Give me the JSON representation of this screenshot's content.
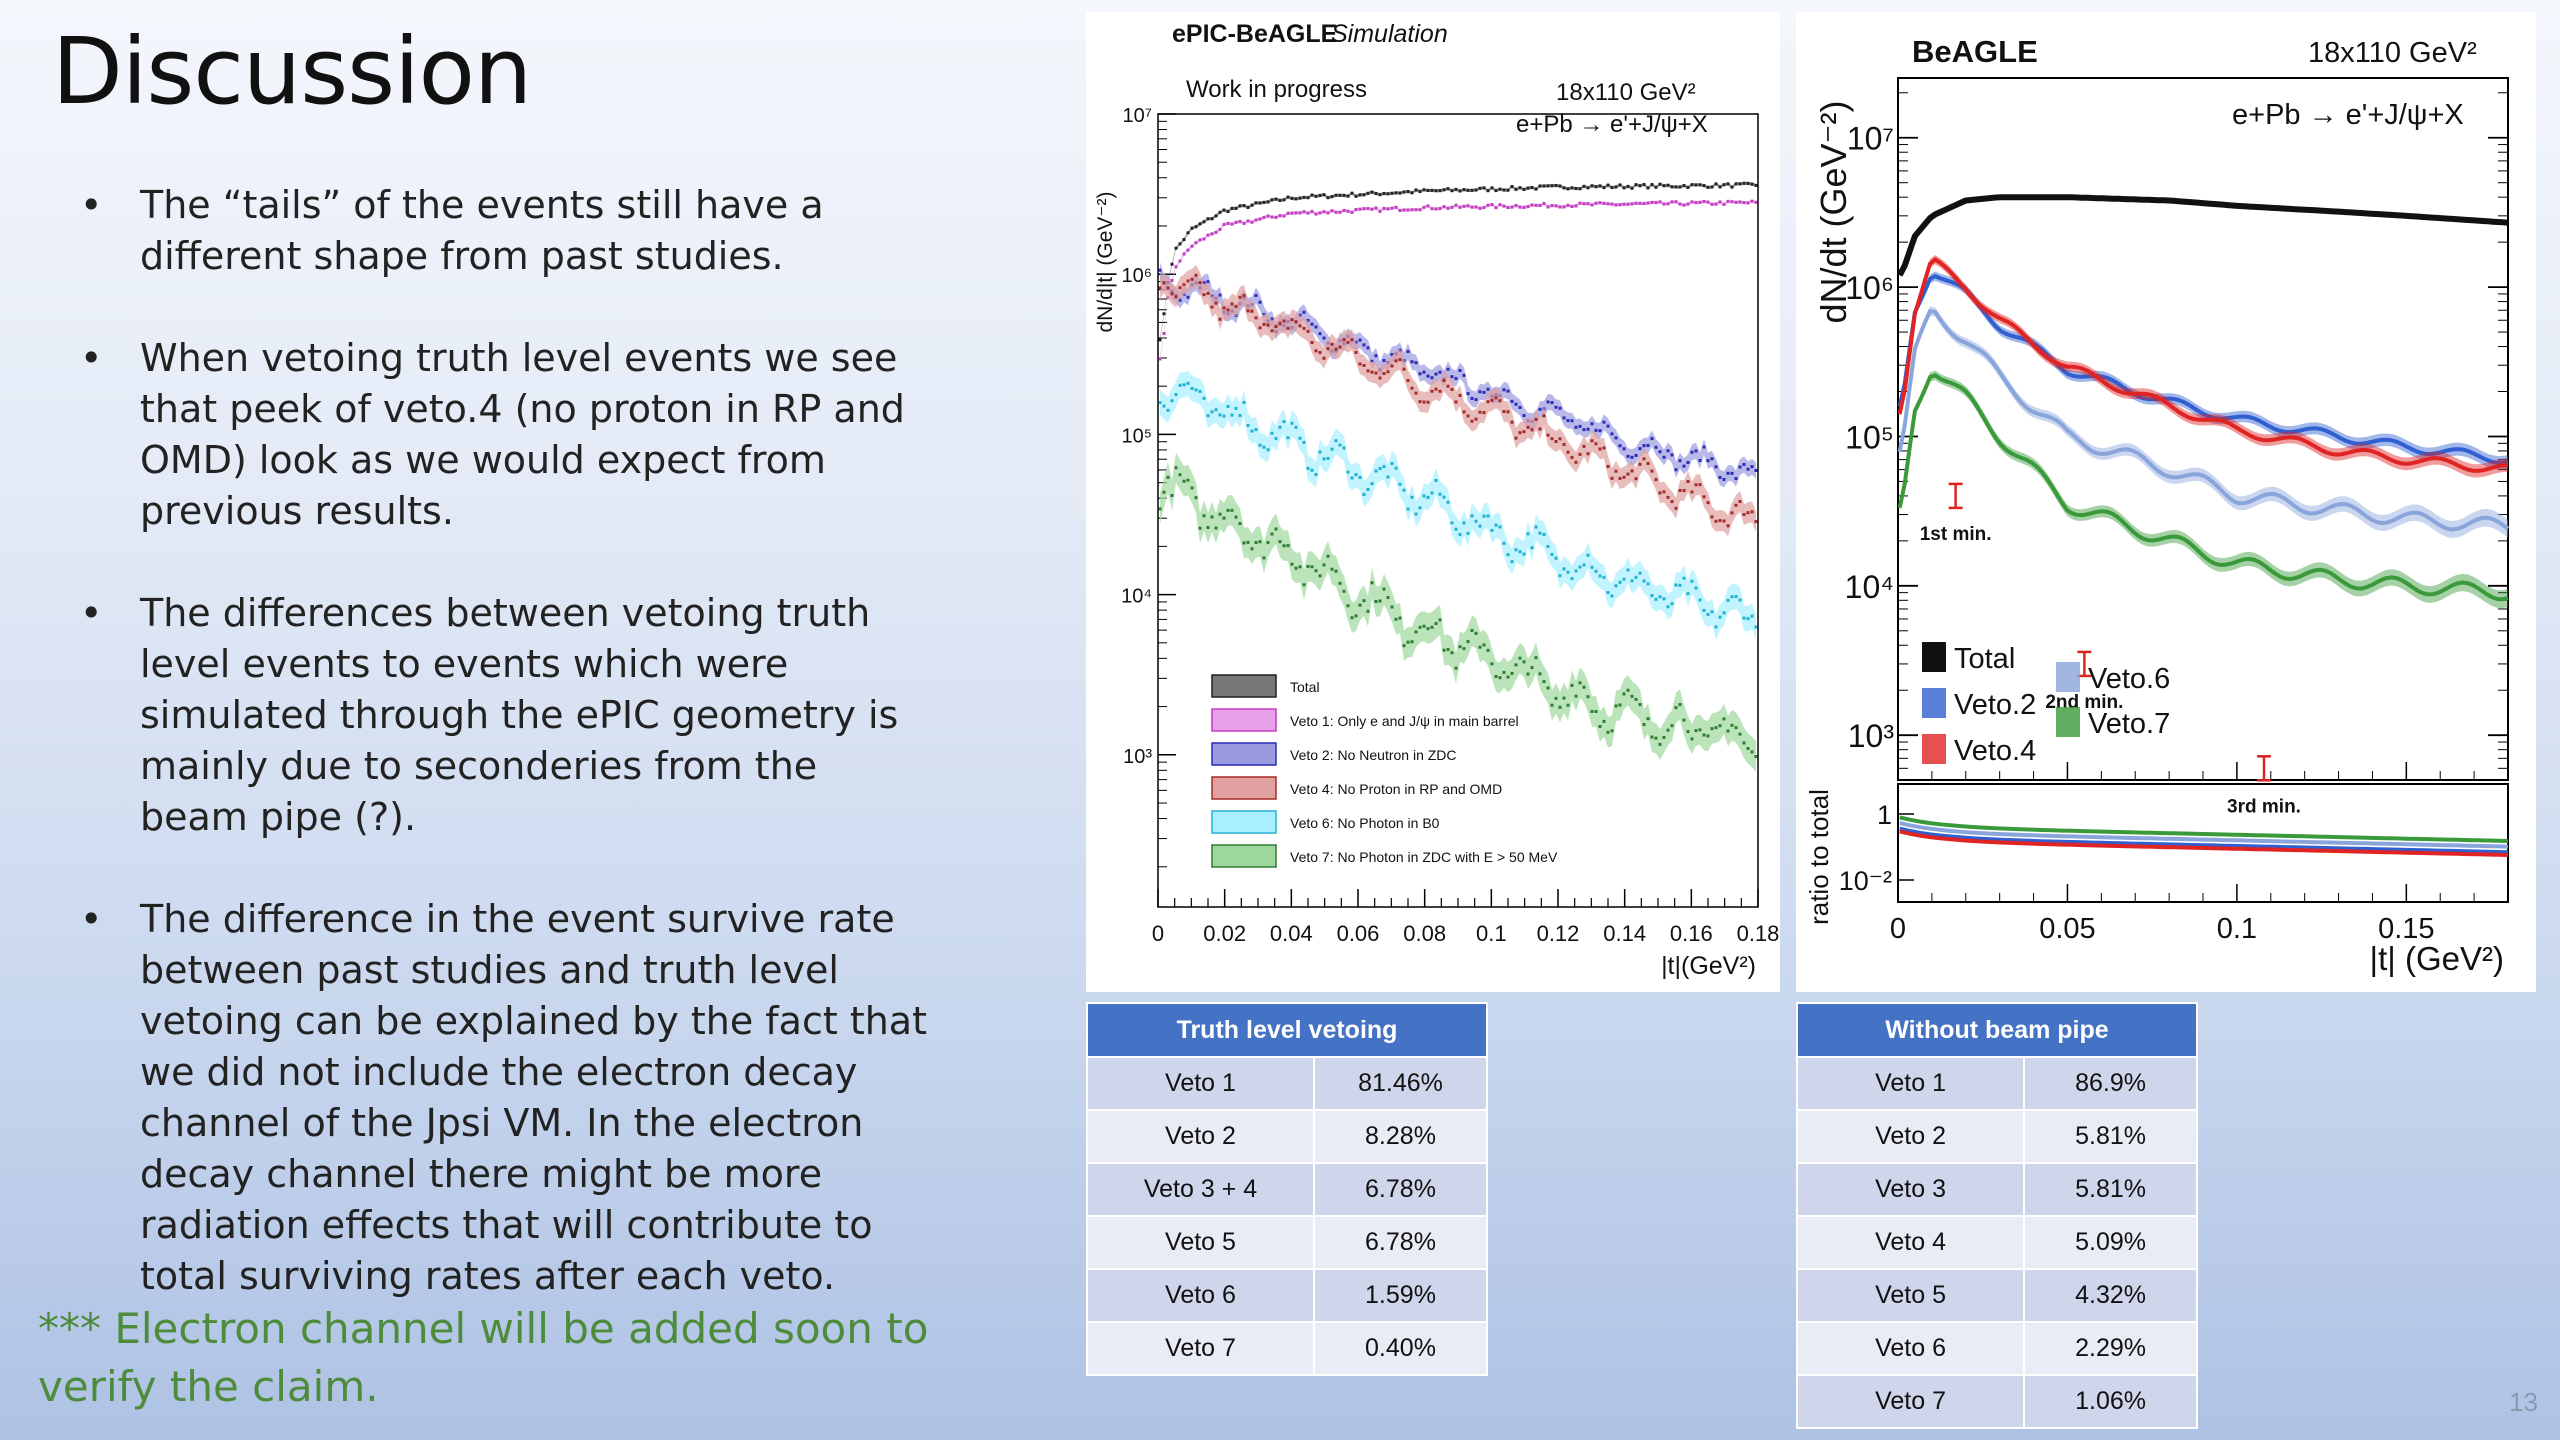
{
  "slide": {
    "title": "Discussion",
    "bullets": [
      "The “tails” of the events still have a different shape from past studies.",
      "When vetoing truth level events we see that peek of veto.4 (no proton in RP and OMD) look as we would expect from previous results.",
      "The differences between vetoing truth level events to events which were simulated through the ePIC geometry is mainly due to seconderies from the beam pipe (?).",
      "The difference in the event survive rate between past studies and truth level vetoing can be explained by the fact that we did not include the electron decay channel of the Jpsi VM. In the electron decay channel there might be more radiation effects that will contribute to total surviving rates after each veto."
    ],
    "note": "*** Electron channel will be added soon to verify the claim.",
    "page_number": "13"
  },
  "chart_data": [
    {
      "type": "scatter",
      "title": "ePIC-BeAGLE",
      "title_suffix": "Simulation",
      "subtitle": "Work in progress",
      "energy_label": "18x110 GeV²",
      "process_label": "e+Pb → e'+J/ψ+X",
      "xlabel": "|t|(GeV²)",
      "ylabel": "dN/d|t| (GeV⁻²)",
      "xlim": [
        0,
        0.18
      ],
      "ylim_log10": [
        2.05,
        7.0
      ],
      "yscale": "log",
      "x_ticks": [
        "0",
        "0.02",
        "0.04",
        "0.06",
        "0.08",
        "0.1",
        "0.12",
        "0.14",
        "0.16",
        "0.18"
      ],
      "y_ticks": [
        "10⁷",
        "10⁶",
        "10⁵",
        "10⁴",
        "10³"
      ],
      "legend_position": "bottom-left",
      "series": [
        {
          "name": "Total",
          "color": "#222222",
          "band": "#777777",
          "x": [
            0.001,
            0.003,
            0.005,
            0.01,
            0.02,
            0.04,
            0.08,
            0.12,
            0.18
          ],
          "y": [
            400000,
            900000,
            1400000,
            1900000,
            2500000,
            3000000,
            3300000,
            3500000,
            3600000
          ]
        },
        {
          "name": "Veto 1: Only e and J/ψ in main barrel",
          "color": "#c23cc2",
          "band": "#e8a0e8",
          "x": [
            0.001,
            0.003,
            0.005,
            0.01,
            0.02,
            0.04,
            0.08,
            0.12,
            0.18
          ],
          "y": [
            300000,
            700000,
            1100000,
            1500000,
            2000000,
            2400000,
            2600000,
            2700000,
            2800000
          ]
        },
        {
          "name": "Veto 2: No Neutron in ZDC",
          "color": "#2b2bb8",
          "band": "#9a9ae0",
          "x": [
            0,
            0.02,
            0.04,
            0.06,
            0.08,
            0.1,
            0.12,
            0.14,
            0.16,
            0.18
          ],
          "y": [
            900000,
            700000,
            500000,
            350000,
            250000,
            180000,
            130000,
            90000,
            70000,
            55000
          ]
        },
        {
          "name": "Veto 4: No Proton in RP and OMD",
          "color": "#a52a2a",
          "band": "#e0a0a0",
          "x": [
            0,
            0.02,
            0.04,
            0.06,
            0.08,
            0.1,
            0.12,
            0.14,
            0.16,
            0.18
          ],
          "y": [
            900000,
            650000,
            450000,
            300000,
            200000,
            140000,
            90000,
            60000,
            40000,
            28000
          ]
        },
        {
          "name": "Veto 6: No Photon in B0",
          "color": "#20b0d0",
          "band": "#a8f0ff",
          "x": [
            0,
            0.02,
            0.04,
            0.06,
            0.08,
            0.1,
            0.12,
            0.14,
            0.16,
            0.18
          ],
          "y": [
            200000,
            140000,
            90000,
            60000,
            40000,
            25000,
            17000,
            12000,
            9000,
            7000
          ]
        },
        {
          "name": "Veto 7: No Photon in ZDC with E > 50 MeV",
          "color": "#2e7d32",
          "band": "#9ed89e",
          "x": [
            0,
            0.02,
            0.04,
            0.06,
            0.08,
            0.1,
            0.12,
            0.14,
            0.16,
            0.18
          ],
          "y": [
            50000,
            30000,
            18000,
            10000,
            6000,
            4000,
            2500,
            1800,
            1500,
            1200
          ]
        }
      ]
    },
    {
      "type": "line",
      "title": "BeAGLE",
      "energy_label": "18x110 GeV²",
      "process_label": "e+Pb → e'+J/ψ+X",
      "xlabel": "|t| (GeV²)",
      "ylabel": "dN/dt (GeV⁻²)",
      "ratio_ylabel": "ratio to total",
      "xlim": [
        0,
        0.18
      ],
      "ylim_log10": [
        2.7,
        7.4
      ],
      "yscale": "log",
      "x_ticks": [
        "0",
        "0.05",
        "0.1",
        "0.15"
      ],
      "y_ticks": [
        "10⁷",
        "10⁶",
        "10⁵",
        "10⁴",
        "10³"
      ],
      "ratio_ticks": [
        "1",
        "10⁻²"
      ],
      "legend_position": "bottom-left",
      "minima": [
        {
          "label": "1st min.",
          "x": 0.017,
          "y": 40000
        },
        {
          "label": "2nd min.",
          "x": 0.055,
          "y": 3000
        },
        {
          "label": "3rd min.",
          "x": 0.108,
          "y": 600
        }
      ],
      "series": [
        {
          "name": "Total",
          "color": "#111111",
          "x": [
            0.001,
            0.005,
            0.01,
            0.02,
            0.03,
            0.05,
            0.08,
            0.1,
            0.13,
            0.15,
            0.18
          ],
          "y": [
            1200000,
            2200000,
            3000000,
            3800000,
            4000000,
            4000000,
            3800000,
            3500000,
            3200000,
            3000000,
            2700000
          ]
        },
        {
          "name": "Veto.2",
          "color": "#2f5fd0",
          "x": [
            0.001,
            0.005,
            0.01,
            0.02,
            0.03,
            0.05,
            0.08,
            0.1,
            0.13,
            0.15,
            0.18
          ],
          "y": [
            150000,
            700000,
            1300000,
            900000,
            550000,
            280000,
            170000,
            130000,
            100000,
            85000,
            70000
          ]
        },
        {
          "name": "Veto.4",
          "color": "#e02424",
          "x": [
            0.001,
            0.005,
            0.01,
            0.02,
            0.03,
            0.05,
            0.08,
            0.1,
            0.13,
            0.15,
            0.18
          ],
          "y": [
            150000,
            700000,
            1500000,
            1000000,
            600000,
            290000,
            160000,
            110000,
            80000,
            70000,
            60000
          ]
        },
        {
          "name": "Veto.6",
          "color": "#8aa4dc",
          "x": [
            0.001,
            0.005,
            0.01,
            0.02,
            0.03,
            0.05,
            0.08,
            0.1,
            0.13,
            0.15,
            0.18
          ],
          "y": [
            80000,
            350000,
            700000,
            450000,
            250000,
            100000,
            60000,
            40000,
            32000,
            28000,
            25000
          ]
        },
        {
          "name": "Veto.7",
          "color": "#3a9a3a",
          "x": [
            0.001,
            0.005,
            0.01,
            0.02,
            0.03,
            0.05,
            0.08,
            0.1,
            0.13,
            0.15,
            0.18
          ],
          "y": [
            30000,
            150000,
            300000,
            180000,
            100000,
            35000,
            20000,
            14000,
            11000,
            10000,
            9000
          ]
        }
      ]
    }
  ],
  "table_truth": {
    "header": "Truth level vetoing",
    "rows": [
      [
        "Veto 1",
        "81.46%"
      ],
      [
        "Veto 2",
        "8.28%"
      ],
      [
        "Veto 3 + 4",
        "6.78%"
      ],
      [
        "Veto 5",
        "6.78%"
      ],
      [
        "Veto 6",
        "1.59%"
      ],
      [
        "Veto 7",
        "0.40%"
      ]
    ]
  },
  "table_nobp": {
    "header": "Without beam pipe",
    "rows": [
      [
        "Veto 1",
        "86.9%"
      ],
      [
        "Veto 2",
        "5.81%"
      ],
      [
        "Veto 3",
        "5.81%"
      ],
      [
        "Veto 4",
        "5.09%"
      ],
      [
        "Veto 5",
        "4.32%"
      ],
      [
        "Veto 6",
        "2.29%"
      ],
      [
        "Veto 7",
        "1.06%"
      ]
    ]
  }
}
